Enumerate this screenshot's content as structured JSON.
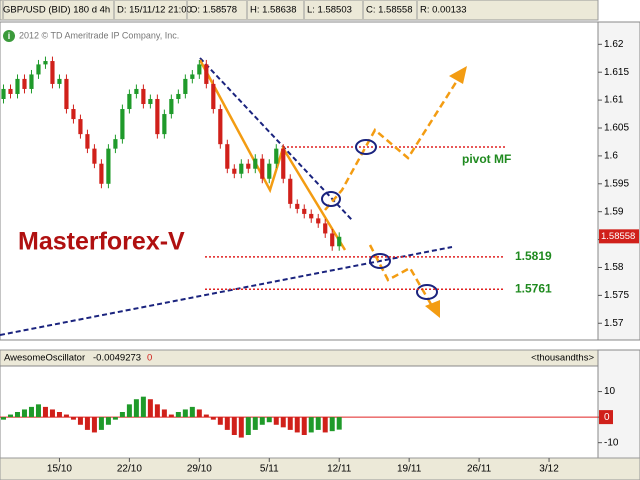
{
  "header": [
    "GBP/USD (BID) 180 d 4h",
    "D: 15/11/12 21:00",
    "O: 1.58578",
    "H: 1.58638",
    "L: 1.58503",
    "C: 1.58558",
    "R: 0.00133"
  ],
  "chart_data": [
    {
      "type": "candlestick",
      "subtitle": "2012 © TD Ameritrade IP Company, Inc.",
      "x": [
        0,
        1,
        2,
        3,
        4,
        5,
        6,
        7,
        8,
        9,
        10,
        11,
        12,
        13,
        14,
        15,
        16,
        17,
        18,
        19,
        20,
        21,
        22,
        23,
        24,
        25,
        26,
        27,
        28,
        29,
        30,
        31,
        32,
        33,
        34,
        35,
        36,
        37,
        38,
        39,
        40,
        41,
        42,
        43,
        44,
        45,
        46,
        47,
        48,
        49
      ],
      "open": [
        1.6095,
        1.6102,
        1.612,
        1.6111,
        1.6138,
        1.612,
        1.6146,
        1.6164,
        1.617,
        1.6129,
        1.6138,
        1.6084,
        1.6066,
        1.6039,
        1.6013,
        1.5986,
        1.595,
        1.6013,
        1.603,
        1.6084,
        1.6111,
        1.612,
        1.6093,
        1.6102,
        1.6039,
        1.6075,
        1.6102,
        1.6111,
        1.6138,
        1.6146,
        1.6164,
        1.6129,
        1.6084,
        1.6021,
        1.5977,
        1.5968,
        1.5986,
        1.5977,
        1.5995,
        1.5959,
        1.5986,
        1.6013,
        1.5959,
        1.5914,
        1.5905,
        1.5896,
        1.5888,
        1.5879,
        1.5861,
        1.5838
      ],
      "high": [
        1.611,
        1.6128,
        1.6128,
        1.6146,
        1.6146,
        1.6154,
        1.6172,
        1.6178,
        1.6178,
        1.6146,
        1.6146,
        1.6092,
        1.6074,
        1.6047,
        1.6021,
        1.5994,
        1.6021,
        1.6038,
        1.6092,
        1.6119,
        1.6128,
        1.6128,
        1.611,
        1.611,
        1.6083,
        1.611,
        1.6119,
        1.6146,
        1.6154,
        1.6172,
        1.6172,
        1.6137,
        1.6092,
        1.6029,
        1.5985,
        1.5994,
        1.5994,
        1.6003,
        1.6003,
        1.5994,
        1.6021,
        1.6021,
        1.5967,
        1.5922,
        1.5913,
        1.5904,
        1.5896,
        1.5887,
        1.5869,
        1.5863
      ],
      "low": [
        1.6087,
        1.6094,
        1.6103,
        1.6103,
        1.6112,
        1.6112,
        1.6138,
        1.6156,
        1.6121,
        1.6121,
        1.6076,
        1.6058,
        1.6031,
        1.6005,
        1.5978,
        1.5942,
        1.5942,
        1.6005,
        1.6022,
        1.6076,
        1.6103,
        1.6085,
        1.6085,
        1.6031,
        1.6031,
        1.6067,
        1.6094,
        1.6103,
        1.613,
        1.6138,
        1.6121,
        1.6076,
        1.6013,
        1.5969,
        1.596,
        1.596,
        1.5969,
        1.5969,
        1.5951,
        1.5951,
        1.5978,
        1.5951,
        1.5906,
        1.5897,
        1.5888,
        1.588,
        1.5871,
        1.5853,
        1.583,
        1.583
      ],
      "close": [
        1.6102,
        1.612,
        1.6111,
        1.6138,
        1.612,
        1.6146,
        1.6164,
        1.617,
        1.6129,
        1.6138,
        1.6084,
        1.6066,
        1.6039,
        1.6013,
        1.5986,
        1.595,
        1.6013,
        1.603,
        1.6084,
        1.6111,
        1.612,
        1.6093,
        1.6102,
        1.6039,
        1.6075,
        1.6102,
        1.6111,
        1.6138,
        1.6146,
        1.6164,
        1.6129,
        1.6084,
        1.6021,
        1.5977,
        1.5968,
        1.5986,
        1.5977,
        1.5995,
        1.5959,
        1.5986,
        1.6013,
        1.5959,
        1.5914,
        1.5905,
        1.5896,
        1.5888,
        1.5879,
        1.5861,
        1.5838,
        1.5855
      ],
      "up_color": "#1f9a2a",
      "down_color": "#d0201a",
      "xlim": [
        0.5,
        86
      ],
      "xticks": [
        {
          "value": 9,
          "label": "15/10"
        },
        {
          "value": 19,
          "label": "22/10"
        },
        {
          "value": 29,
          "label": "29/10"
        },
        {
          "value": 39,
          "label": "5/11"
        },
        {
          "value": 49,
          "label": "12/11"
        },
        {
          "value": 59,
          "label": "19/11"
        },
        {
          "value": 69,
          "label": "26/11"
        },
        {
          "value": 79,
          "label": "3/12"
        }
      ],
      "ylim": [
        1.567,
        1.624
      ],
      "yticks": [
        1.57,
        1.575,
        1.58,
        1.585,
        1.59,
        1.595,
        1.6,
        1.605,
        1.61,
        1.615,
        1.62
      ],
      "last_price": 1.58558,
      "watermark": "Masterforex-V",
      "pivot_label": "pivot MF",
      "levels": [
        1.5819,
        1.5761
      ]
    },
    {
      "type": "oscillator",
      "series": [
        {
          "name": "AwesomeOscillator",
          "up_color": "#1f9a2a",
          "down_color": "#d0201a",
          "values": [
            -2,
            -1,
            1,
            2,
            3,
            4,
            5,
            4,
            3,
            2,
            1,
            -1,
            -3,
            -5,
            -6,
            -5,
            -3,
            -1,
            2,
            5,
            7,
            8,
            7,
            5,
            3,
            1,
            2,
            3,
            4,
            3,
            1,
            -1,
            -3,
            -5,
            -7,
            -8,
            -7,
            -5,
            -3,
            -2,
            -3,
            -4,
            -5,
            -6,
            -7,
            -6,
            -5,
            -6,
            -5.5,
            -4.9
          ]
        }
      ],
      "current_value": -0.0049273,
      "flag": "0",
      "units": "<thousandths>",
      "ylim": [
        -16,
        20
      ],
      "yticks": [
        -10,
        0,
        10
      ]
    }
  ]
}
